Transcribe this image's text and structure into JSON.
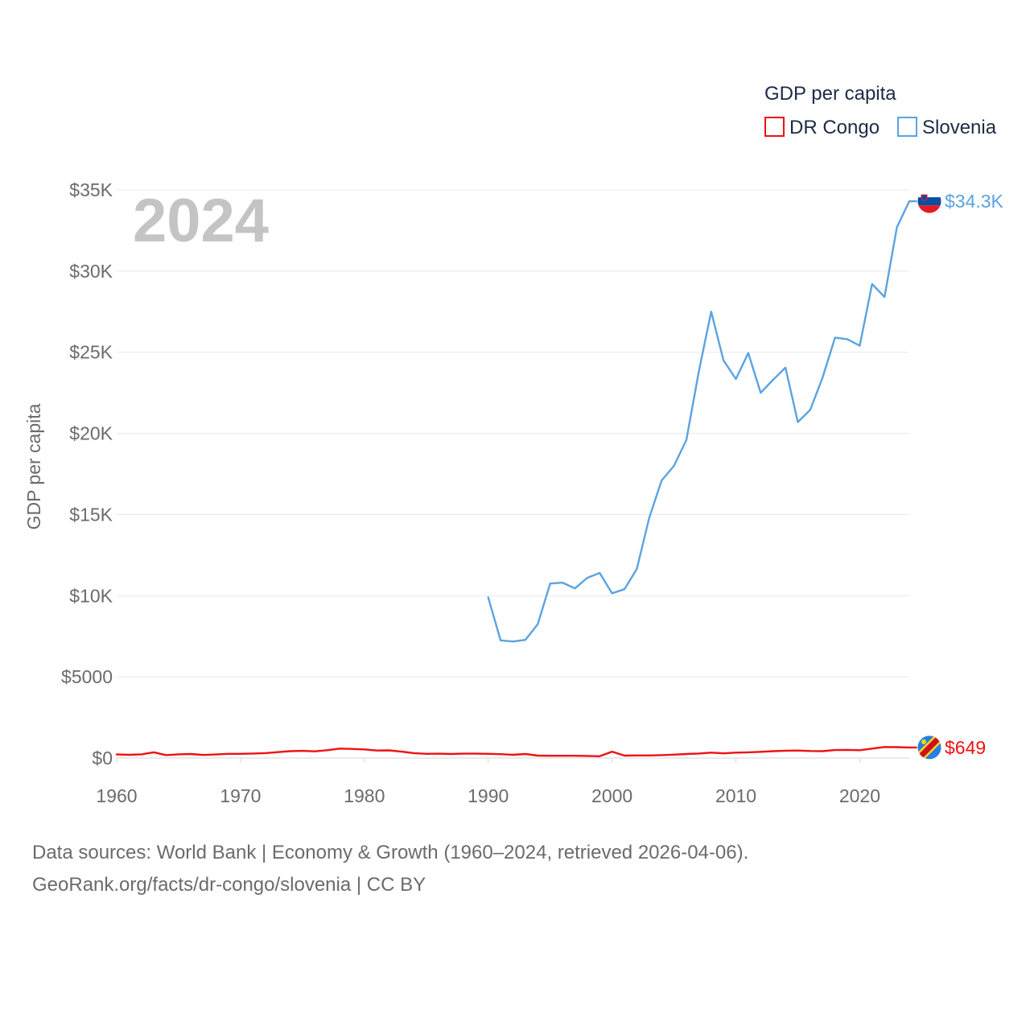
{
  "chart_data": {
    "type": "line",
    "title": "",
    "year_stamp": "2024",
    "ylabel": "GDP per capita",
    "xlabel": "",
    "xlim": [
      1960,
      2024
    ],
    "ylim": [
      0,
      35000
    ],
    "x_ticks": [
      {
        "value": 1960,
        "label": "1960"
      },
      {
        "value": 1970,
        "label": "1970"
      },
      {
        "value": 1980,
        "label": "1980"
      },
      {
        "value": 1990,
        "label": "1990"
      },
      {
        "value": 2000,
        "label": "2000"
      },
      {
        "value": 2010,
        "label": "2010"
      },
      {
        "value": 2020,
        "label": "2020"
      }
    ],
    "y_ticks": [
      {
        "value": 0,
        "label": "$0"
      },
      {
        "value": 5000,
        "label": "$5000"
      },
      {
        "value": 10000,
        "label": "$10K"
      },
      {
        "value": 15000,
        "label": "$15K"
      },
      {
        "value": 20000,
        "label": "$20K"
      },
      {
        "value": 25000,
        "label": "$25K"
      },
      {
        "value": 30000,
        "label": "$30K"
      },
      {
        "value": 35000,
        "label": "$35K"
      }
    ],
    "grid": true,
    "legend": {
      "title": "GDP per capita",
      "position": "top-right"
    },
    "series": [
      {
        "name": "DR Congo",
        "color": "#ee1111",
        "end_label": "$649",
        "flag": "dr-congo-flag",
        "x": [
          1960,
          1961,
          1962,
          1963,
          1964,
          1965,
          1966,
          1967,
          1968,
          1969,
          1970,
          1971,
          1972,
          1973,
          1974,
          1975,
          1976,
          1977,
          1978,
          1979,
          1980,
          1981,
          1982,
          1983,
          1984,
          1985,
          1986,
          1987,
          1988,
          1989,
          1990,
          1991,
          1992,
          1993,
          1994,
          1995,
          1996,
          1997,
          1998,
          1999,
          2000,
          2001,
          2002,
          2003,
          2004,
          2005,
          2006,
          2007,
          2008,
          2009,
          2010,
          2011,
          2012,
          2013,
          2014,
          2015,
          2016,
          2017,
          2018,
          2019,
          2020,
          2021,
          2022,
          2023,
          2024
        ],
        "values": [
          220,
          200,
          230,
          350,
          180,
          230,
          250,
          190,
          220,
          260,
          260,
          280,
          300,
          360,
          420,
          440,
          410,
          480,
          580,
          560,
          530,
          460,
          470,
          390,
          300,
          260,
          270,
          250,
          270,
          270,
          260,
          240,
          200,
          250,
          150,
          140,
          140,
          140,
          130,
          110,
          390,
          150,
          160,
          160,
          180,
          210,
          250,
          280,
          330,
          290,
          330,
          350,
          380,
          420,
          450,
          460,
          430,
          420,
          490,
          500,
          480,
          580,
          680,
          670,
          649
        ]
      },
      {
        "name": "Slovenia",
        "color": "#5ba3e0",
        "end_label": "$34.3K",
        "flag": "slovenia-flag",
        "x": [
          1990,
          1991,
          1992,
          1993,
          1994,
          1995,
          1996,
          1997,
          1998,
          1999,
          2000,
          2001,
          2002,
          2003,
          2004,
          2005,
          2006,
          2007,
          2008,
          2009,
          2010,
          2011,
          2012,
          2013,
          2014,
          2015,
          2016,
          2017,
          2018,
          2019,
          2020,
          2021,
          2022,
          2023,
          2024
        ],
        "values": [
          9900,
          7250,
          7180,
          7280,
          8250,
          10750,
          10800,
          10450,
          11100,
          11400,
          10150,
          10400,
          11650,
          14800,
          17100,
          18000,
          19600,
          23800,
          27500,
          24500,
          23350,
          24950,
          22500,
          23300,
          24050,
          20700,
          21450,
          23450,
          25900,
          25800,
          25400,
          29200,
          28400,
          32700,
          34300
        ]
      }
    ]
  },
  "footer": {
    "line1": "Data sources: World Bank | Economy & Growth (1960–2024, retrieved 2026-04-06).",
    "line2": "GeoRank.org/facts/dr-congo/slovenia | CC BY"
  }
}
